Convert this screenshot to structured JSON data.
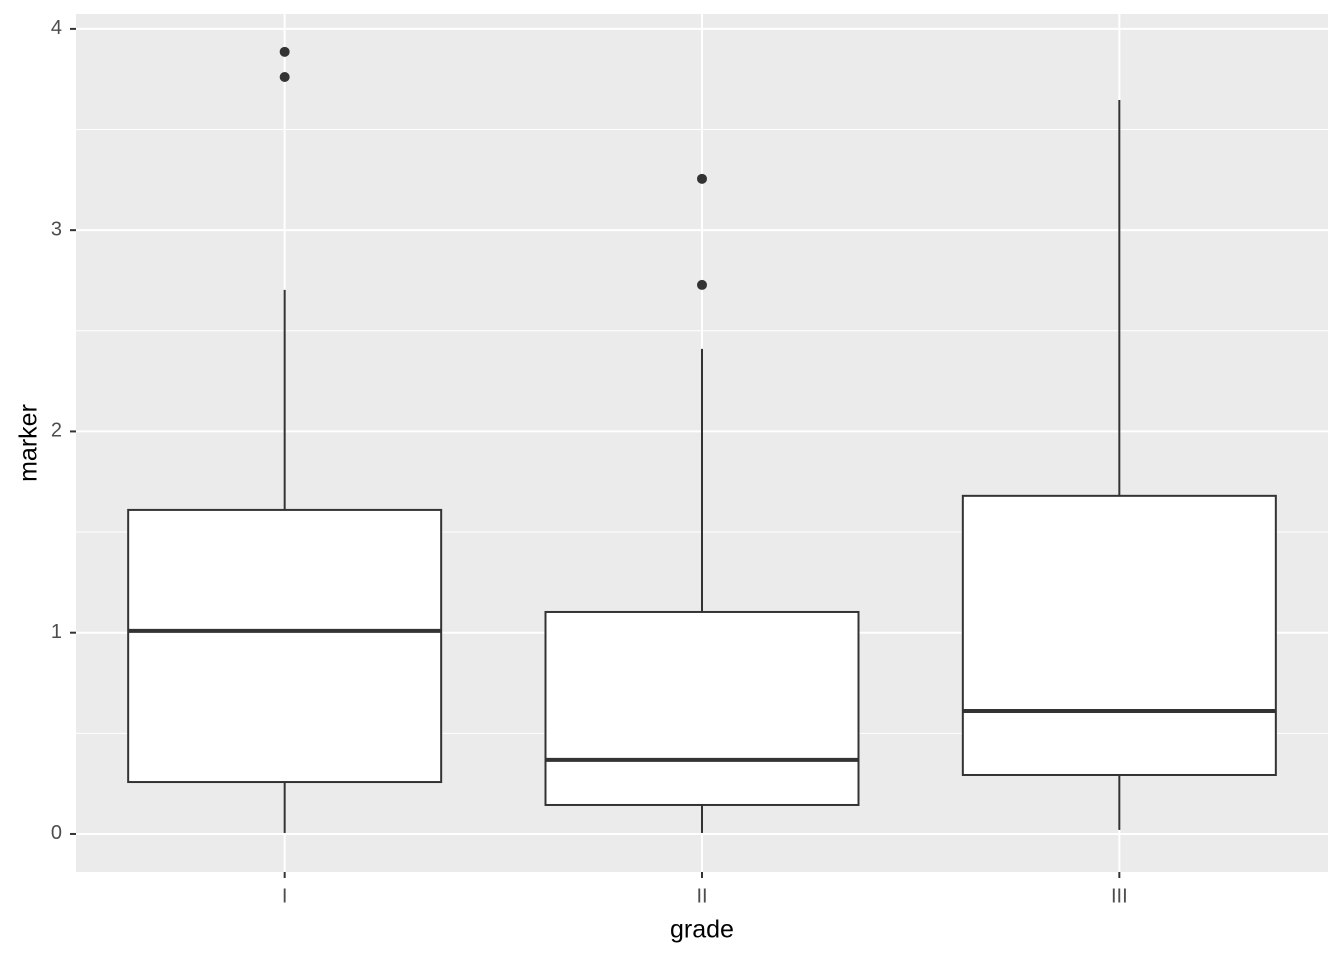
{
  "chart_data": {
    "type": "box",
    "x_label": "grade",
    "y_label": "marker",
    "categories": [
      "I",
      "II",
      "III"
    ],
    "boxes": [
      {
        "whisker_low": 0.005,
        "q1": 0.258,
        "median": 1.009,
        "q3": 1.61,
        "whisker_high": 2.703,
        "outliers": [
          3.886,
          3.761
        ]
      },
      {
        "whisker_low": 0.005,
        "q1": 0.144,
        "median": 0.368,
        "q3": 1.103,
        "whisker_high": 2.41,
        "outliers": [
          3.255,
          2.728
        ]
      },
      {
        "whisker_low": 0.02,
        "q1": 0.293,
        "median": 0.611,
        "q3": 1.68,
        "whisker_high": 3.647,
        "outliers": []
      }
    ],
    "box_fill": "#ffffff",
    "line_color": "#333333",
    "panel_color": "#ebebeb",
    "grid_color": "#ffffff",
    "ylim": [
      -0.189,
      4.074
    ],
    "yticks": [
      0,
      1,
      2,
      3,
      4
    ],
    "y_minor_ticks": [
      0.5,
      1.5,
      2.5,
      3.5
    ],
    "grid": true
  }
}
